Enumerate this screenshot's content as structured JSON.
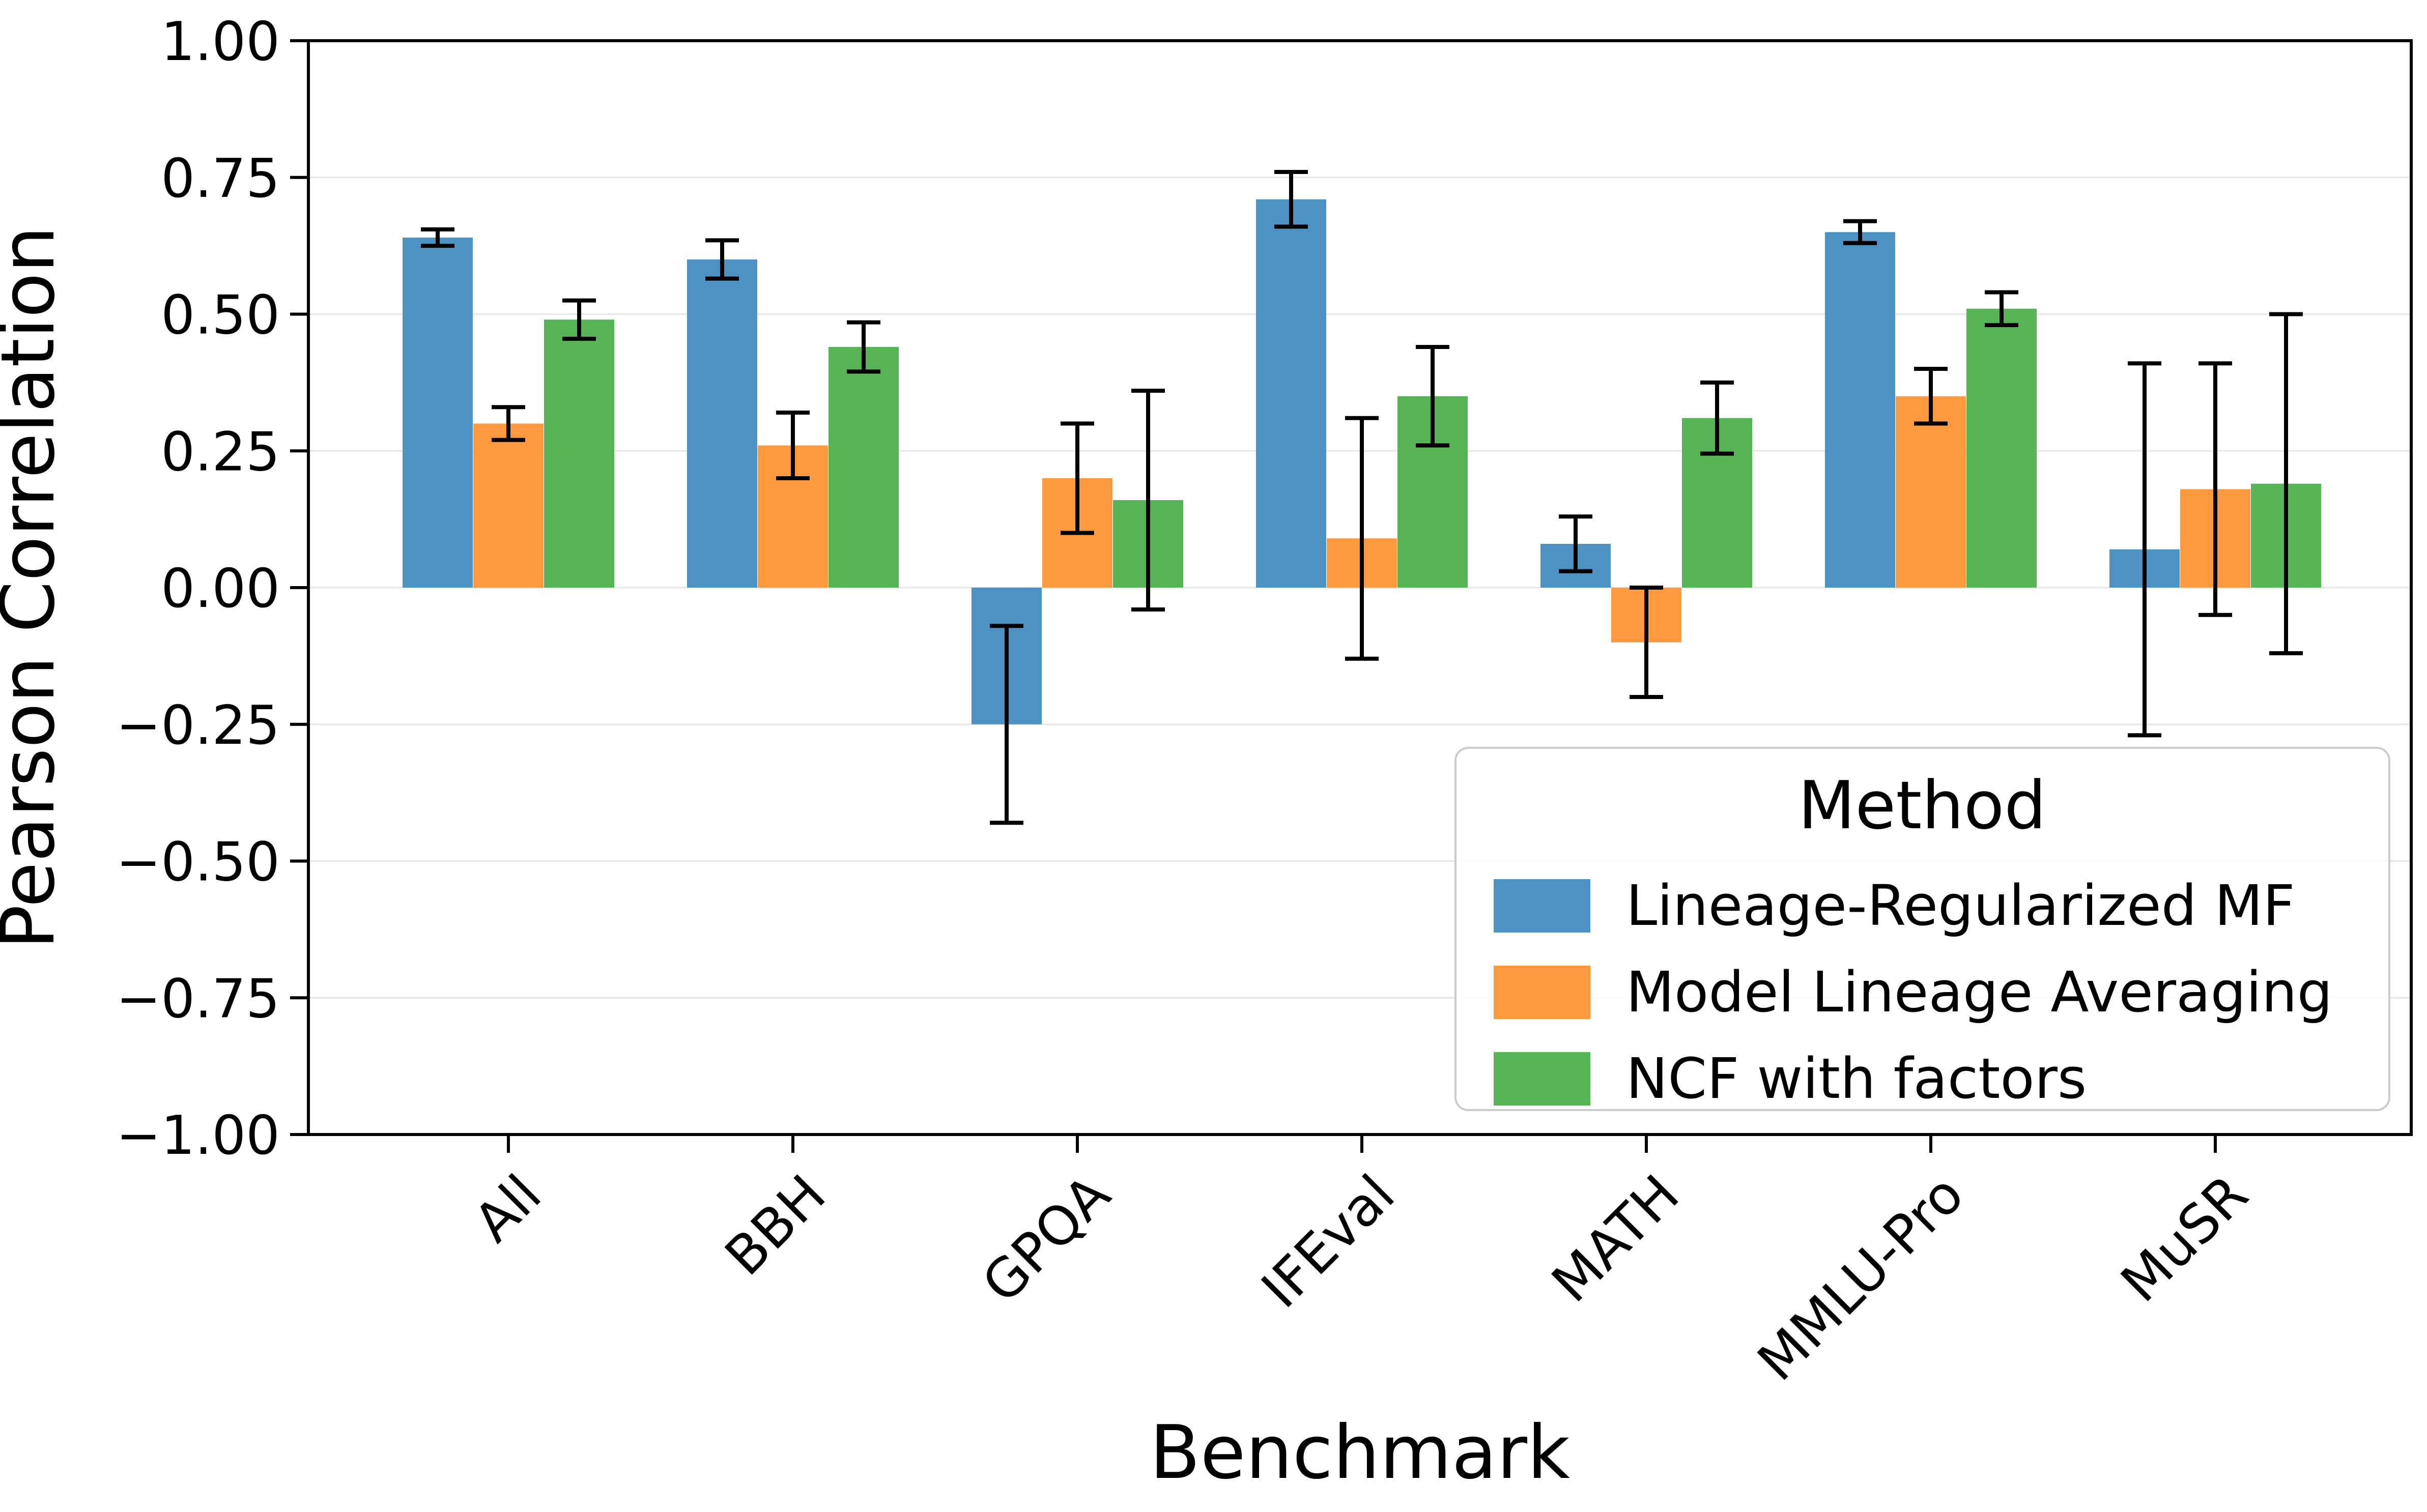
{
  "chart_data": {
    "type": "bar",
    "title": "",
    "xlabel": "Benchmark",
    "ylabel": "Pearson Correlation",
    "ylim": [
      -1.0,
      1.0
    ],
    "ytick_labels": [
      "1.00",
      "0.75",
      "0.50",
      "0.25",
      "0.00",
      "−0.25",
      "−0.50",
      "−0.75",
      "−1.00"
    ],
    "ytick_values": [
      1.0,
      0.75,
      0.5,
      0.25,
      0.0,
      -0.25,
      -0.5,
      -0.75,
      -1.0
    ],
    "gridline_values": [
      0.75,
      0.5,
      0.25,
      0.0,
      -0.25,
      -0.5,
      -0.75
    ],
    "categories": [
      "All",
      "BBH",
      "GPQA",
      "IFEval",
      "MATH",
      "MMLU-Pro",
      "MuSR"
    ],
    "series": [
      {
        "name": "Lineage-Regularized MF",
        "color": "#4C92C3",
        "values": [
          0.64,
          0.6,
          -0.25,
          0.71,
          0.08,
          0.65,
          0.07
        ],
        "errors": [
          0.015,
          0.035,
          0.18,
          0.05,
          0.05,
          0.02,
          0.34
        ]
      },
      {
        "name": "Model Lineage Averaging",
        "color": "#FF9940",
        "values": [
          0.3,
          0.26,
          0.2,
          0.09,
          -0.1,
          0.35,
          0.18
        ],
        "errors": [
          0.03,
          0.06,
          0.1,
          0.22,
          0.1,
          0.05,
          0.23
        ]
      },
      {
        "name": "NCF with factors",
        "color": "#56B356",
        "values": [
          0.49,
          0.44,
          0.16,
          0.35,
          0.31,
          0.51,
          0.19
        ],
        "errors": [
          0.035,
          0.045,
          0.2,
          0.09,
          0.065,
          0.03,
          0.31
        ]
      }
    ],
    "legend": {
      "title": "Method",
      "position": "lower right"
    },
    "grid": "horizontal",
    "colors": {
      "grid": "#E6E6E6",
      "spine": "#000000",
      "errorbar": "#000000",
      "background": "#FFFFFF",
      "legend_border": "#CCCCCC"
    }
  }
}
